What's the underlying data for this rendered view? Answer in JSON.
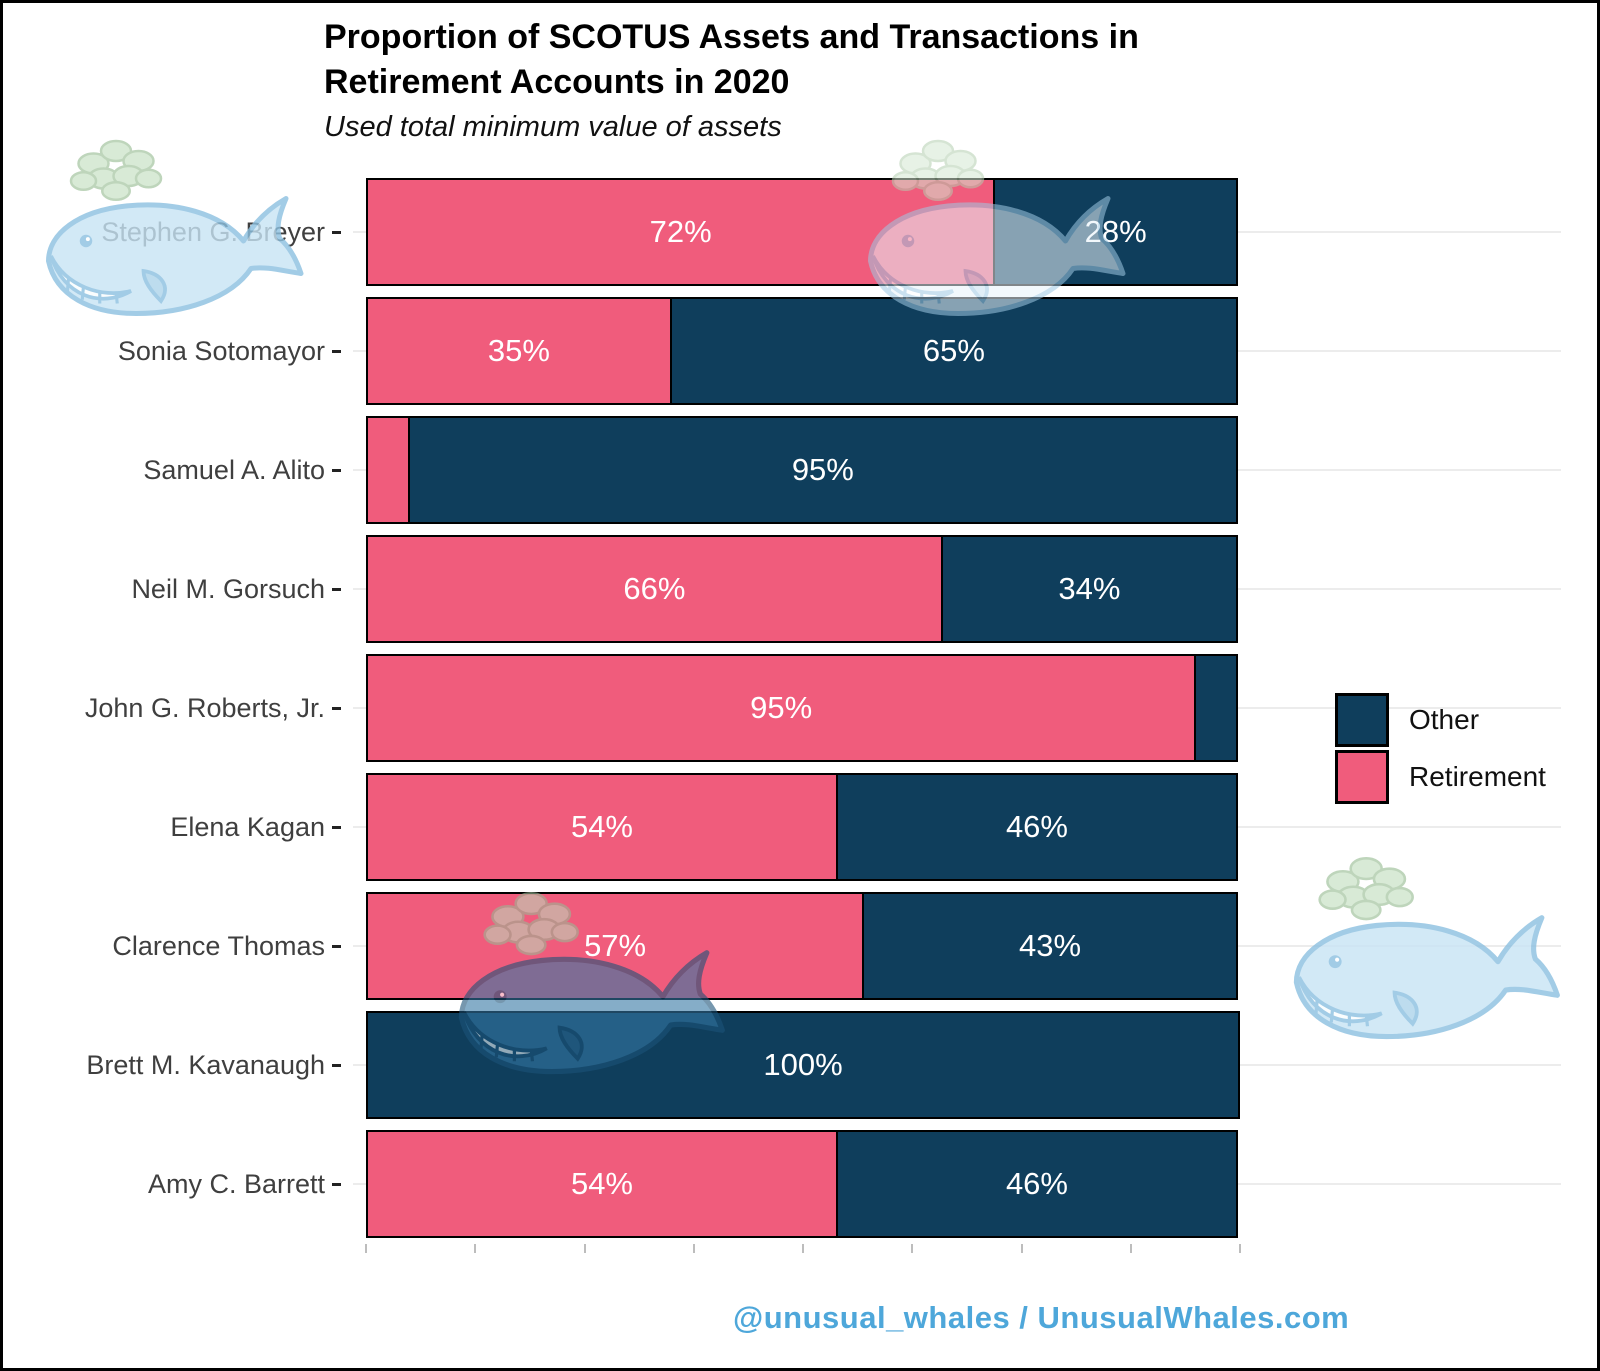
{
  "page": {
    "background": "#FFFFFF",
    "frame_border_color": "#000000"
  },
  "header": {
    "title": "Proportion of SCOTUS Assets and Transactions in\nRetirement Accounts in 2020",
    "subtitle": "Used total minimum value of assets"
  },
  "footer": {
    "text": "@unusual_whales / UnusualWhales.com",
    "color": "#4EA7DA"
  },
  "watermarks": {
    "icon": "whale-with-money-spout",
    "positions": [
      "top-left",
      "top-center",
      "bottom-center-left",
      "bottom-right"
    ]
  },
  "chart_data": {
    "type": "bar",
    "orientation": "horizontal",
    "stacked": true,
    "title": "Proportion of SCOTUS Assets and Transactions in Retirement Accounts in 2020",
    "subtitle": "Used total minimum value of assets",
    "categories": [
      "Stephen G. Breyer",
      "Sonia Sotomayor",
      "Samuel A. Alito",
      "Neil M. Gorsuch",
      "John G. Roberts, Jr.",
      "Elena Kagan",
      "Clarence Thomas",
      "Brett M. Kavanaugh",
      "Amy C. Barrett"
    ],
    "series": [
      {
        "name": "Retirement",
        "color": "#F05C7C",
        "values": [
          72,
          35,
          5,
          66,
          95,
          54,
          57,
          0,
          54
        ]
      },
      {
        "name": "Other",
        "color": "#0F3E5C",
        "values": [
          28,
          65,
          95,
          34,
          5,
          46,
          43,
          100,
          46
        ]
      }
    ],
    "value_unit": "%",
    "label_min_value_for_display": 10,
    "x_axis": {
      "min": 0,
      "max": 100,
      "tick_interval": 12.5,
      "tick_labels_visible": false
    },
    "legend": {
      "position": "right",
      "order": [
        "Other",
        "Retirement"
      ]
    }
  }
}
